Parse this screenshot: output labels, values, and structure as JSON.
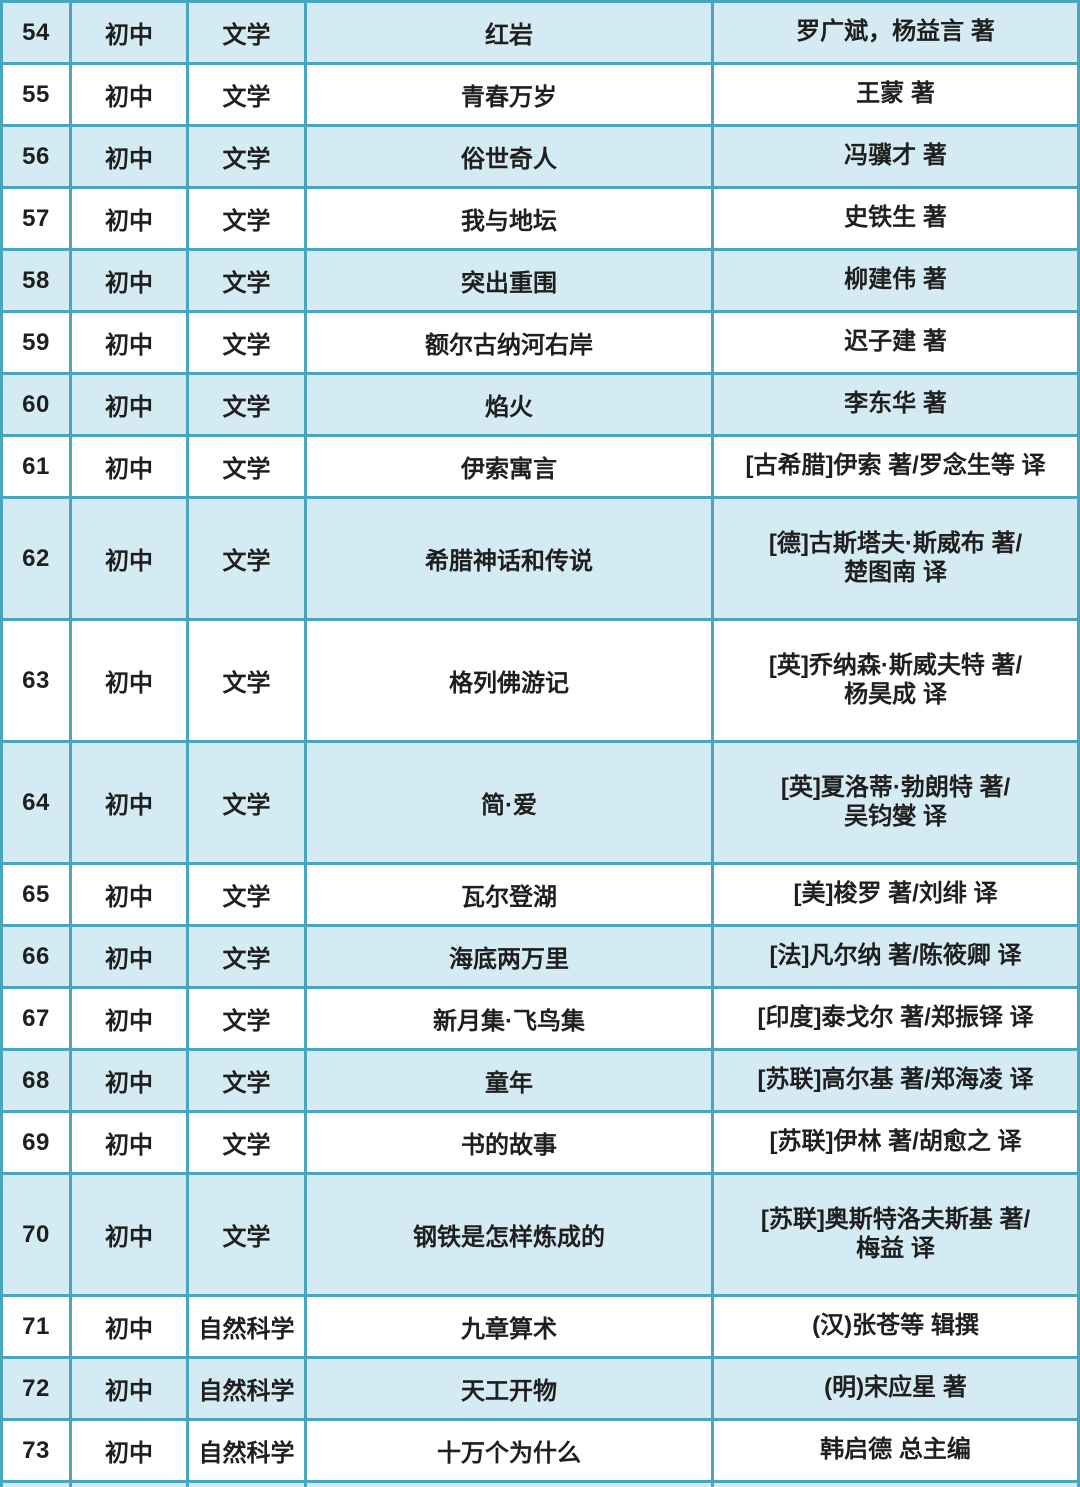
{
  "colors": {
    "border_teal": "#4aa6c0",
    "band_fill": "#d5ebf4",
    "white_fill": "#ffffff",
    "page_background": "#cfe7f1",
    "text": "#1f1f1f"
  },
  "table": {
    "rows": [
      {
        "no": "54",
        "stage": "初中",
        "category": "文学",
        "title": "红岩",
        "authors": [
          "罗广斌，杨益言 著"
        ],
        "tall": false
      },
      {
        "no": "55",
        "stage": "初中",
        "category": "文学",
        "title": "青春万岁",
        "authors": [
          "王蒙 著"
        ],
        "tall": false
      },
      {
        "no": "56",
        "stage": "初中",
        "category": "文学",
        "title": "俗世奇人",
        "authors": [
          "冯骥才 著"
        ],
        "tall": false
      },
      {
        "no": "57",
        "stage": "初中",
        "category": "文学",
        "title": "我与地坛",
        "authors": [
          "史铁生 著"
        ],
        "tall": false
      },
      {
        "no": "58",
        "stage": "初中",
        "category": "文学",
        "title": "突出重围",
        "authors": [
          "柳建伟 著"
        ],
        "tall": false
      },
      {
        "no": "59",
        "stage": "初中",
        "category": "文学",
        "title": "额尔古纳河右岸",
        "authors": [
          "迟子建 著"
        ],
        "tall": false
      },
      {
        "no": "60",
        "stage": "初中",
        "category": "文学",
        "title": "焰火",
        "authors": [
          "李东华 著"
        ],
        "tall": false
      },
      {
        "no": "61",
        "stage": "初中",
        "category": "文学",
        "title": "伊索寓言",
        "authors": [
          "[古希腊]伊索 著/罗念生等 译"
        ],
        "tall": false
      },
      {
        "no": "62",
        "stage": "初中",
        "category": "文学",
        "title": "希腊神话和传说",
        "authors": [
          "[德]古斯塔夫·斯威布 著/",
          "楚图南 译"
        ],
        "tall": true
      },
      {
        "no": "63",
        "stage": "初中",
        "category": "文学",
        "title": "格列佛游记",
        "authors": [
          "[英]乔纳森·斯威夫特 著/",
          "杨昊成 译"
        ],
        "tall": true
      },
      {
        "no": "64",
        "stage": "初中",
        "category": "文学",
        "title": "简·爱",
        "authors": [
          "[英]夏洛蒂·勃朗特 著/",
          "吴钧燮 译"
        ],
        "tall": true
      },
      {
        "no": "65",
        "stage": "初中",
        "category": "文学",
        "title": "瓦尔登湖",
        "authors": [
          "[美]梭罗 著/刘绯 译"
        ],
        "tall": false
      },
      {
        "no": "66",
        "stage": "初中",
        "category": "文学",
        "title": "海底两万里",
        "authors": [
          "[法]凡尔纳 著/陈筱卿 译"
        ],
        "tall": false
      },
      {
        "no": "67",
        "stage": "初中",
        "category": "文学",
        "title": "新月集·飞鸟集",
        "authors": [
          "[印度]泰戈尔 著/郑振铎 译"
        ],
        "tall": false
      },
      {
        "no": "68",
        "stage": "初中",
        "category": "文学",
        "title": "童年",
        "authors": [
          "[苏联]高尔基 著/郑海凌 译"
        ],
        "tall": false
      },
      {
        "no": "69",
        "stage": "初中",
        "category": "文学",
        "title": "书的故事",
        "authors": [
          "[苏联]伊林 著/胡愈之 译"
        ],
        "tall": false
      },
      {
        "no": "70",
        "stage": "初中",
        "category": "文学",
        "title": "钢铁是怎样炼成的",
        "authors": [
          "[苏联]奥斯特洛夫斯基 著/",
          "梅益 译"
        ],
        "tall": true
      },
      {
        "no": "71",
        "stage": "初中",
        "category": "自然科学",
        "title": "九章算术",
        "authors": [
          "(汉)张苍等 辑撰"
        ],
        "tall": false
      },
      {
        "no": "72",
        "stage": "初中",
        "category": "自然科学",
        "title": "天工开物",
        "authors": [
          "(明)宋应星 著"
        ],
        "tall": false
      },
      {
        "no": "73",
        "stage": "初中",
        "category": "自然科学",
        "title": "十万个为什么",
        "authors": [
          "韩启德 总主编"
        ],
        "tall": false
      }
    ]
  }
}
